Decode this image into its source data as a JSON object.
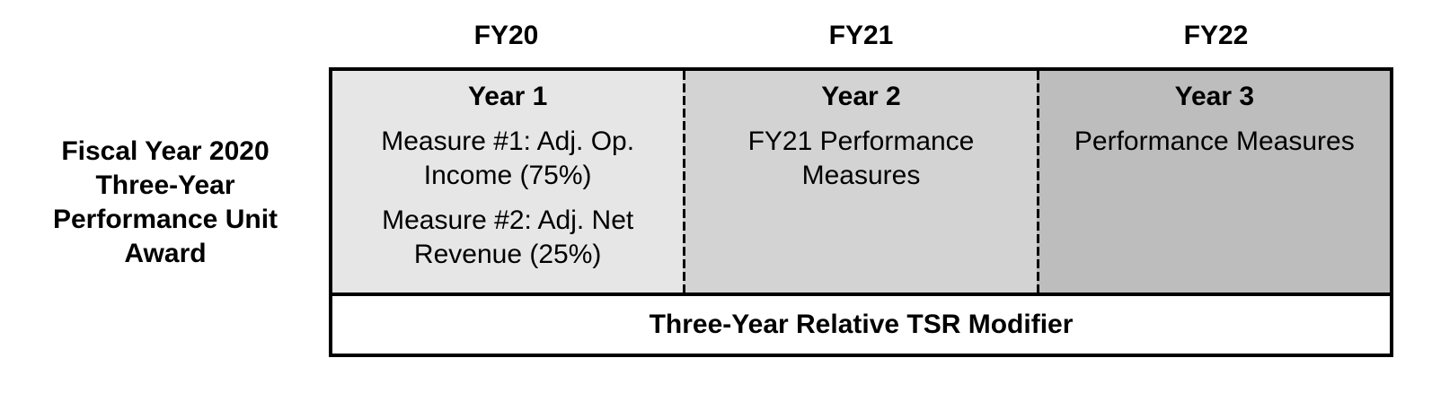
{
  "award_label": {
    "lines": [
      "Fiscal Year 2020",
      "Three-Year",
      "Performance Unit",
      "Award"
    ]
  },
  "columns": [
    {
      "fy": "FY20",
      "year": "Year 1",
      "items": [
        "Measure #1: Adj. Op. Income (75%)",
        "Measure #2: Adj. Net Revenue (25%)"
      ],
      "bg": "#e6e6e6"
    },
    {
      "fy": "FY21",
      "year": "Year 2",
      "items": [
        "FY21 Performance Measures"
      ],
      "bg": "#d3d3d3"
    },
    {
      "fy": "FY22",
      "year": "Year 3",
      "items": [
        "Performance Measures"
      ],
      "bg": "#bdbdbd"
    }
  ],
  "footer": {
    "label": "Three-Year Relative TSR Modifier",
    "bg": "#ffffff"
  },
  "colors": {
    "border": "#000000",
    "text": "#000000",
    "dashed_separator": "#000000"
  }
}
